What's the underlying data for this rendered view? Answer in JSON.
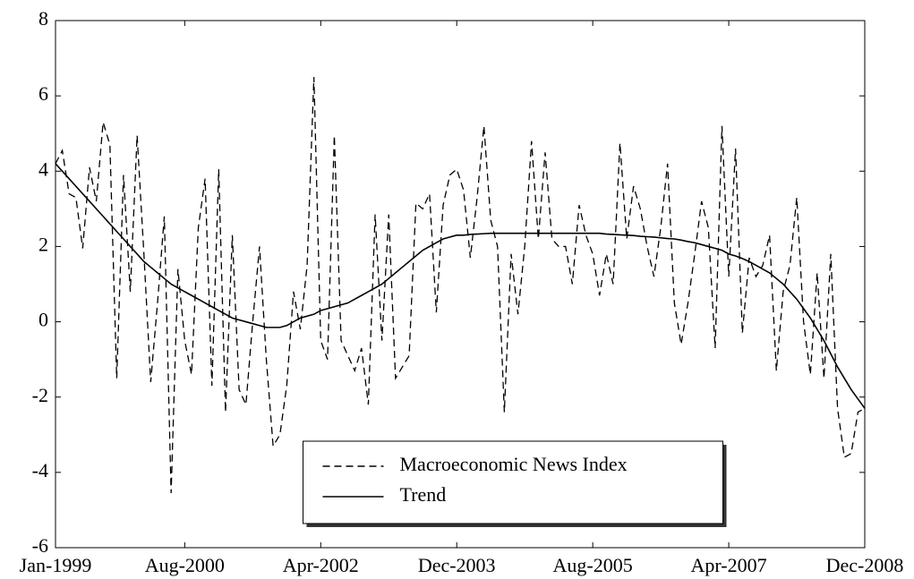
{
  "chart_data": {
    "type": "line",
    "categories": [
      "Jan-1999",
      null,
      null,
      null,
      null,
      null,
      null,
      null,
      null,
      null,
      null,
      null,
      null,
      null,
      null,
      null,
      null,
      null,
      null,
      "Aug-2000",
      null,
      null,
      null,
      null,
      null,
      null,
      null,
      null,
      null,
      null,
      null,
      null,
      null,
      null,
      null,
      null,
      null,
      null,
      null,
      "Apr-2002",
      null,
      null,
      null,
      null,
      null,
      null,
      null,
      null,
      null,
      null,
      null,
      null,
      null,
      null,
      null,
      null,
      null,
      null,
      null,
      "Dec-2003",
      null,
      null,
      null,
      null,
      null,
      null,
      null,
      null,
      null,
      null,
      null,
      null,
      null,
      null,
      null,
      null,
      null,
      null,
      null,
      "Aug-2005",
      null,
      null,
      null,
      null,
      null,
      null,
      null,
      null,
      null,
      null,
      null,
      null,
      null,
      null,
      null,
      null,
      null,
      null,
      null,
      "Apr-2007",
      null,
      null,
      null,
      null,
      null,
      null,
      null,
      null,
      null,
      null,
      null,
      null,
      null,
      null,
      null,
      null,
      null,
      null,
      null,
      "Dec-2008"
    ],
    "series": [
      {
        "name": "Macroeconomic News Index",
        "color": "#000000",
        "style": "dashed",
        "values": [
          4.2,
          4.55,
          3.4,
          3.3,
          1.95,
          4.1,
          3.2,
          5.3,
          4.7,
          -1.5,
          3.9,
          0.8,
          4.95,
          1.8,
          -1.6,
          0.5,
          2.8,
          -4.55,
          1.4,
          -0.5,
          -1.4,
          2.5,
          3.8,
          -1.7,
          4.05,
          -2.4,
          2.3,
          -1.8,
          -2.2,
          0,
          2.0,
          -1.0,
          -3.3,
          -3.0,
          -1.7,
          0.8,
          -0.2,
          1.5,
          6.5,
          -0.5,
          -1.0,
          4.95,
          -0.5,
          -0.9,
          -1.3,
          -0.7,
          -2.2,
          2.85,
          -0.5,
          2.85,
          -1.5,
          -1.2,
          -0.9,
          3.15,
          3.0,
          3.4,
          0.25,
          3.1,
          3.9,
          4.05,
          3.5,
          1.7,
          3.3,
          5.2,
          2.7,
          2.0,
          -2.4,
          1.8,
          0.2,
          2.0,
          4.8,
          2.2,
          4.5,
          2.2,
          2.0,
          2.0,
          1.0,
          3.1,
          2.3,
          1.8,
          0.7,
          1.8,
          1.0,
          4.75,
          2.2,
          3.6,
          3.0,
          2.0,
          1.2,
          2.5,
          4.2,
          0.5,
          -0.6,
          0.5,
          1.8,
          3.2,
          2.5,
          -0.7,
          5.2,
          1.2,
          4.6,
          -0.3,
          1.7,
          1.2,
          1.5,
          2.3,
          -1.3,
          0.8,
          1.5,
          3.3,
          0.0,
          -1.4,
          1.3,
          -1.5,
          1.8,
          -2.3,
          -3.6,
          -3.5,
          -2.4,
          -2.3
        ]
      },
      {
        "name": "Trend",
        "color": "#000000",
        "style": "solid",
        "values": [
          4.2,
          4.0,
          3.8,
          3.6,
          3.4,
          3.2,
          3.0,
          2.8,
          2.6,
          2.4,
          2.2,
          2.0,
          1.8,
          1.6,
          1.45,
          1.3,
          1.15,
          1.0,
          0.9,
          0.8,
          0.7,
          0.6,
          0.5,
          0.4,
          0.3,
          0.2,
          0.1,
          0.05,
          0.0,
          -0.05,
          -0.1,
          -0.15,
          -0.15,
          -0.15,
          -0.1,
          0.0,
          0.1,
          0.15,
          0.2,
          0.3,
          0.35,
          0.4,
          0.45,
          0.5,
          0.6,
          0.7,
          0.8,
          0.9,
          1.0,
          1.15,
          1.3,
          1.45,
          1.6,
          1.75,
          1.9,
          2.0,
          2.1,
          2.2,
          2.25,
          2.3,
          2.3,
          2.32,
          2.33,
          2.34,
          2.35,
          2.35,
          2.35,
          2.35,
          2.35,
          2.35,
          2.35,
          2.35,
          2.35,
          2.35,
          2.35,
          2.35,
          2.35,
          2.35,
          2.35,
          2.35,
          2.35,
          2.33,
          2.32,
          2.31,
          2.3,
          2.29,
          2.27,
          2.26,
          2.25,
          2.23,
          2.21,
          2.2,
          2.17,
          2.13,
          2.1,
          2.05,
          2.0,
          1.95,
          1.9,
          1.8,
          1.75,
          1.68,
          1.6,
          1.5,
          1.4,
          1.3,
          1.15,
          1.0,
          0.8,
          0.6,
          0.35,
          0.1,
          -0.2,
          -0.5,
          -0.85,
          -1.2,
          -1.5,
          -1.8,
          -2.05,
          -2.3
        ]
      }
    ],
    "ylim": [
      -6,
      8
    ],
    "yticks": [
      -6,
      -4,
      -2,
      0,
      2,
      4,
      6,
      8
    ],
    "grid": false,
    "legend": "lower center"
  }
}
